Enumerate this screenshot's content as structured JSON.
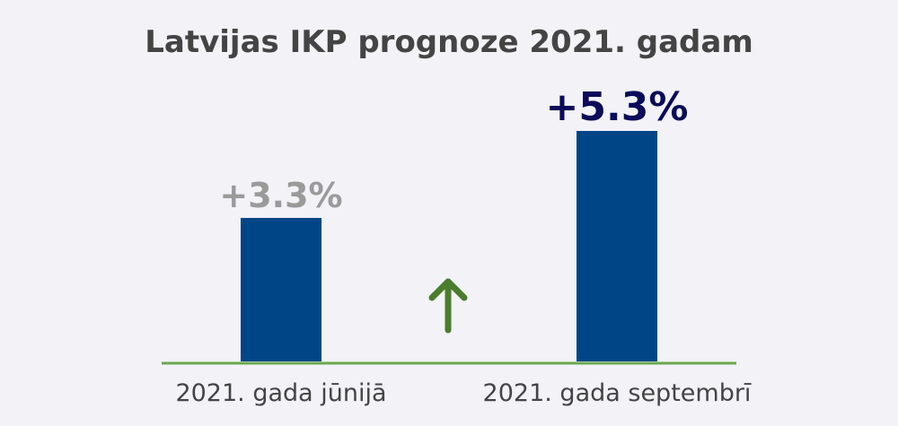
{
  "chart_data": {
    "type": "bar",
    "title": "Latvijas IKP prognoze 2021. gadam",
    "categories": [
      "2021. gada jūnijā",
      "2021. gada septembrī"
    ],
    "values": [
      3.3,
      5.3
    ],
    "data_labels": [
      "+3.3%",
      "+5.3%"
    ],
    "ylim": [
      0,
      5.3
    ],
    "unit": "%",
    "annotation": "up-arrow-icon",
    "grid": false,
    "legend": "none"
  },
  "colors": {
    "background": "#f2f2f7",
    "bar": "#004687",
    "baseline": "#6aa84f",
    "arrow": "#4a7d2c",
    "title": "#444444",
    "category_label": "#444444",
    "data_labels": [
      "#9a9a9a",
      "#0b0b5a"
    ]
  }
}
